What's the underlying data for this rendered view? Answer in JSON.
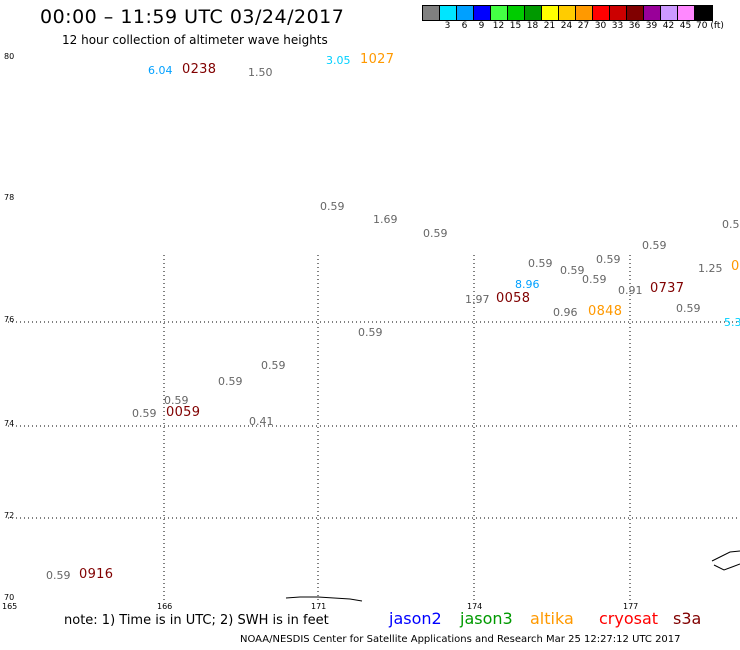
{
  "title": "00:00 – 11:59 UTC 03/24/2017",
  "subtitle": "12 hour collection of altimeter wave heights",
  "legend": {
    "colors": [
      "#808080",
      "#00e5ff",
      "#00a0ff",
      "#0000ff",
      "#44ff44",
      "#00cc00",
      "#009900",
      "#ffff00",
      "#ffcc00",
      "#ff9900",
      "#ff0000",
      "#cc0000",
      "#800000",
      "#990099",
      "#cc99ff",
      "#ff88ff",
      "#000000"
    ],
    "labels": [
      "",
      "3",
      "6",
      "9",
      "12",
      "15",
      "18",
      "21",
      "24",
      "27",
      "30",
      "33",
      "36",
      "39",
      "42",
      "45",
      "70 (ft)"
    ]
  },
  "axes": {
    "lat_labels": [
      "80",
      "78",
      "76",
      "74",
      "72",
      "70"
    ],
    "lon_labels": [
      "165",
      "166",
      "171",
      "174",
      "177"
    ]
  },
  "wave_values": [
    {
      "text": "6.04",
      "color": "#00a0ff"
    },
    {
      "text": "1.50",
      "color": "#666666"
    },
    {
      "text": "3.05",
      "color": "#00d0ff"
    },
    {
      "text": "0.59",
      "color": "#666666"
    },
    {
      "text": "1.69",
      "color": "#666666"
    },
    {
      "text": "0.59",
      "color": "#666666"
    },
    {
      "text": "0.5",
      "color": "#666666"
    },
    {
      "text": "0.59",
      "color": "#666666"
    },
    {
      "text": "0.59",
      "color": "#666666"
    },
    {
      "text": "0.59",
      "color": "#666666"
    },
    {
      "text": "1.25",
      "color": "#666666"
    },
    {
      "text": "0",
      "color": "#ff9900"
    },
    {
      "text": "0.59",
      "color": "#666666"
    },
    {
      "text": "8.96",
      "color": "#00a0ff"
    },
    {
      "text": "0.59",
      "color": "#666666"
    },
    {
      "text": "0.91",
      "color": "#666666"
    },
    {
      "text": "1.97",
      "color": "#666666"
    },
    {
      "text": "0.96",
      "color": "#666666"
    },
    {
      "text": "0.59",
      "color": "#666666"
    },
    {
      "text": "5.3",
      "color": "#00d0ff"
    },
    {
      "text": "0.59",
      "color": "#666666"
    },
    {
      "text": "0.59",
      "color": "#666666"
    },
    {
      "text": "0.59",
      "color": "#666666"
    },
    {
      "text": "0.59",
      "color": "#666666"
    },
    {
      "text": "0.59",
      "color": "#666666"
    },
    {
      "text": "0.41",
      "color": "#666666"
    },
    {
      "text": "0.59",
      "color": "#666666"
    }
  ],
  "times": [
    {
      "text": "0238",
      "color": "#800000"
    },
    {
      "text": "1027",
      "color": "#ff9900"
    },
    {
      "text": "0058",
      "color": "#800000"
    },
    {
      "text": "0737",
      "color": "#800000"
    },
    {
      "text": "0848",
      "color": "#ff9900"
    },
    {
      "text": "0059",
      "color": "#800000"
    },
    {
      "text": "0916",
      "color": "#800000"
    }
  ],
  "note": "note:  1) Time is in UTC;  2) SWH is in feet",
  "missions": [
    {
      "text": "jason2",
      "color": "#0000ff"
    },
    {
      "text": "jason3",
      "color": "#009900"
    },
    {
      "text": "altika",
      "color": "#ff9900"
    },
    {
      "text": "cryosat",
      "color": "#ff0000"
    },
    {
      "text": "s3a",
      "color": "#800000"
    }
  ],
  "credit": "NOAA/NESDIS Center for Satellite Applications and Research    Mar 25 12:27:12 UTC 2017"
}
